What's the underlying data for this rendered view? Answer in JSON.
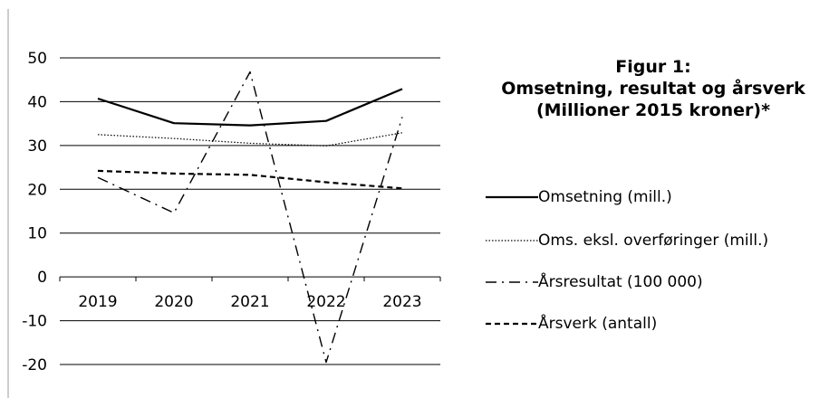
{
  "chart_data": {
    "type": "line",
    "title": [
      "Figur 1:",
      "Omsetning, resultat og årsverk",
      "(Millioner 2015  kroner)*"
    ],
    "categories": [
      "2019",
      "2020",
      "2021",
      "2022",
      "2023"
    ],
    "ylim": [
      -20,
      50
    ],
    "yticks": [
      "50",
      "40",
      "30",
      "20",
      "10",
      "0",
      "-10",
      "-20"
    ],
    "ytick_values": [
      50,
      40,
      30,
      20,
      10,
      0,
      -10,
      -20
    ],
    "grid": true,
    "legend_position": "right",
    "series": [
      {
        "name": "Omsetning (mill.)",
        "values": [
          40.7,
          35.1,
          34.6,
          35.6,
          42.9
        ],
        "style": "solid",
        "color": "#000000"
      },
      {
        "name": "Oms. eksl. overføringer (mill.)",
        "values": [
          32.5,
          31.6,
          30.5,
          29.9,
          32.9
        ],
        "style": "dotted",
        "color": "#000000"
      },
      {
        "name": "Årsresultat (100 000)",
        "values": [
          22.7,
          14.6,
          46.8,
          -19.5,
          36.5
        ],
        "style": "dashdot",
        "color": "#000000"
      },
      {
        "name": "Årsverk (antall)",
        "values": [
          24.2,
          23.6,
          23.3,
          21.6,
          20.2
        ],
        "style": "dashed",
        "color": "#000000"
      }
    ]
  }
}
